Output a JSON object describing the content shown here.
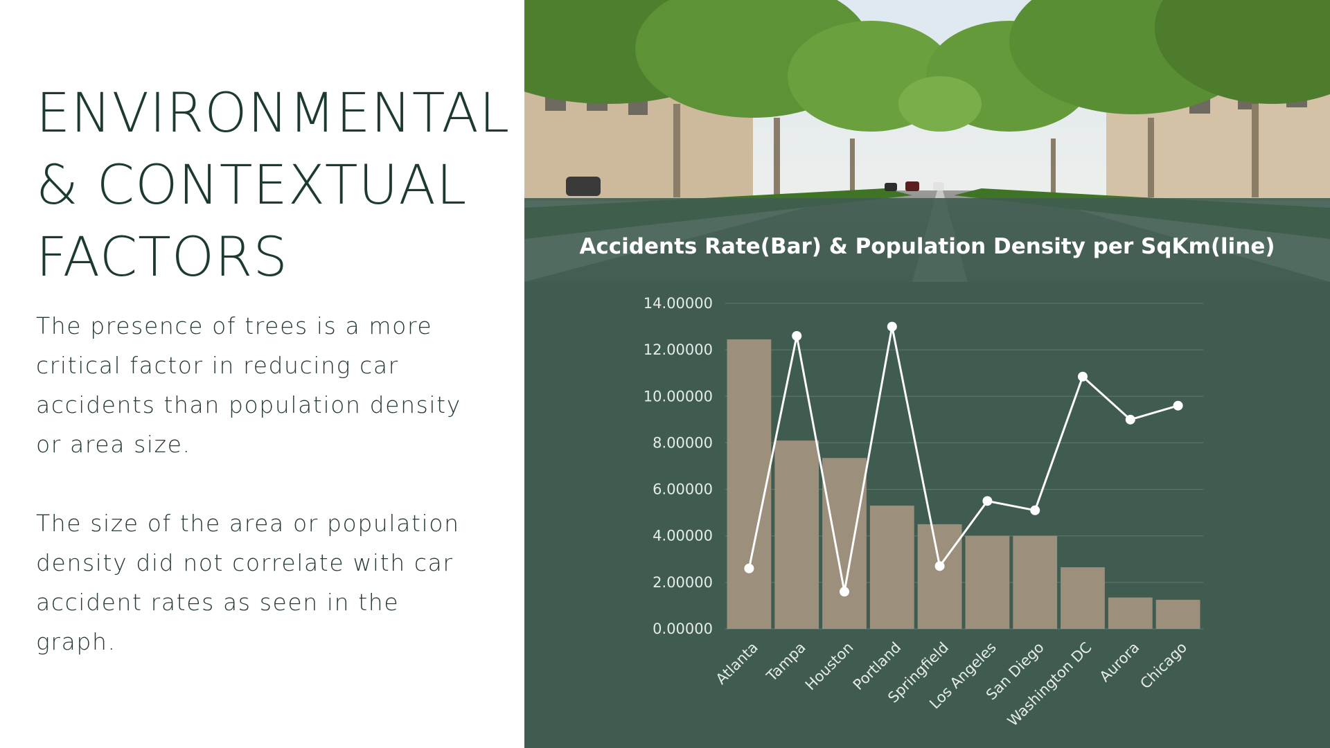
{
  "slide": {
    "title_lines": [
      "ENVIRONMENTAL",
      "& CONTEXTUAL",
      "FACTORS"
    ],
    "paragraph_1": "The presence of trees is a more critical factor in reducing car accidents than population density or area size.",
    "paragraph_2": "The size of the area or population density did not correlate with car accident rates as seen in the graph."
  },
  "colors": {
    "title_text": "#1d3a31",
    "panel_background": "#405c51",
    "bar": "#9c8f7c",
    "line": "#ffffff"
  },
  "chart_data": {
    "type": "bar",
    "title": "Accidents Rate(Bar) & Population Density per SqKm(line)",
    "categories": [
      "Atlanta",
      "Tampa",
      "Houston",
      "Portland",
      "Springfield",
      "Los Angeles",
      "San Diego",
      "Washington DC",
      "Aurora",
      "Chicago"
    ],
    "series": [
      {
        "type": "bar",
        "values": [
          12.45,
          8.1,
          7.35,
          5.3,
          4.5,
          4.0,
          4.0,
          2.65,
          1.35,
          1.25
        ]
      },
      {
        "type": "line",
        "values": [
          2.6,
          12.6,
          1.6,
          13.0,
          2.7,
          5.5,
          5.1,
          10.85,
          9.0,
          9.6
        ]
      }
    ],
    "ylim": [
      0,
      14
    ],
    "yticks": [
      "0.00000",
      "2.00000",
      "4.00000",
      "6.00000",
      "8.00000",
      "10.00000",
      "12.00000",
      "14.00000"
    ],
    "grid": true,
    "legend": "none"
  }
}
